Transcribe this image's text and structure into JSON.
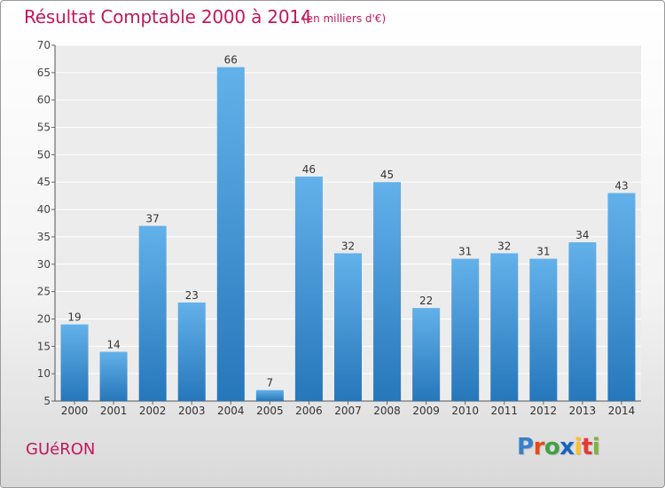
{
  "header": {
    "title": "Résultat Comptable 2000 à 2014",
    "subtitle": "(en milliers d'€)"
  },
  "footer": {
    "commune": "GUéRON",
    "logo_letters": [
      "P",
      "r",
      "o",
      "x",
      "i",
      "t",
      "i"
    ]
  },
  "colors": {
    "bar_light": "#63b1ea",
    "bar_dark": "#2677bb",
    "title": "#c2185b"
  },
  "chart_data": {
    "type": "bar",
    "categories": [
      "2000",
      "2001",
      "2002",
      "2003",
      "2004",
      "2005",
      "2006",
      "2007",
      "2008",
      "2009",
      "2010",
      "2011",
      "2012",
      "2013",
      "2014"
    ],
    "values": [
      19,
      14,
      37,
      23,
      66,
      7,
      46,
      32,
      45,
      22,
      31,
      32,
      31,
      34,
      43
    ],
    "ylim": [
      5,
      70
    ],
    "yticks": [
      5,
      10,
      15,
      20,
      25,
      30,
      35,
      40,
      45,
      50,
      55,
      60,
      65,
      70
    ],
    "grid": true,
    "legend": "none"
  }
}
